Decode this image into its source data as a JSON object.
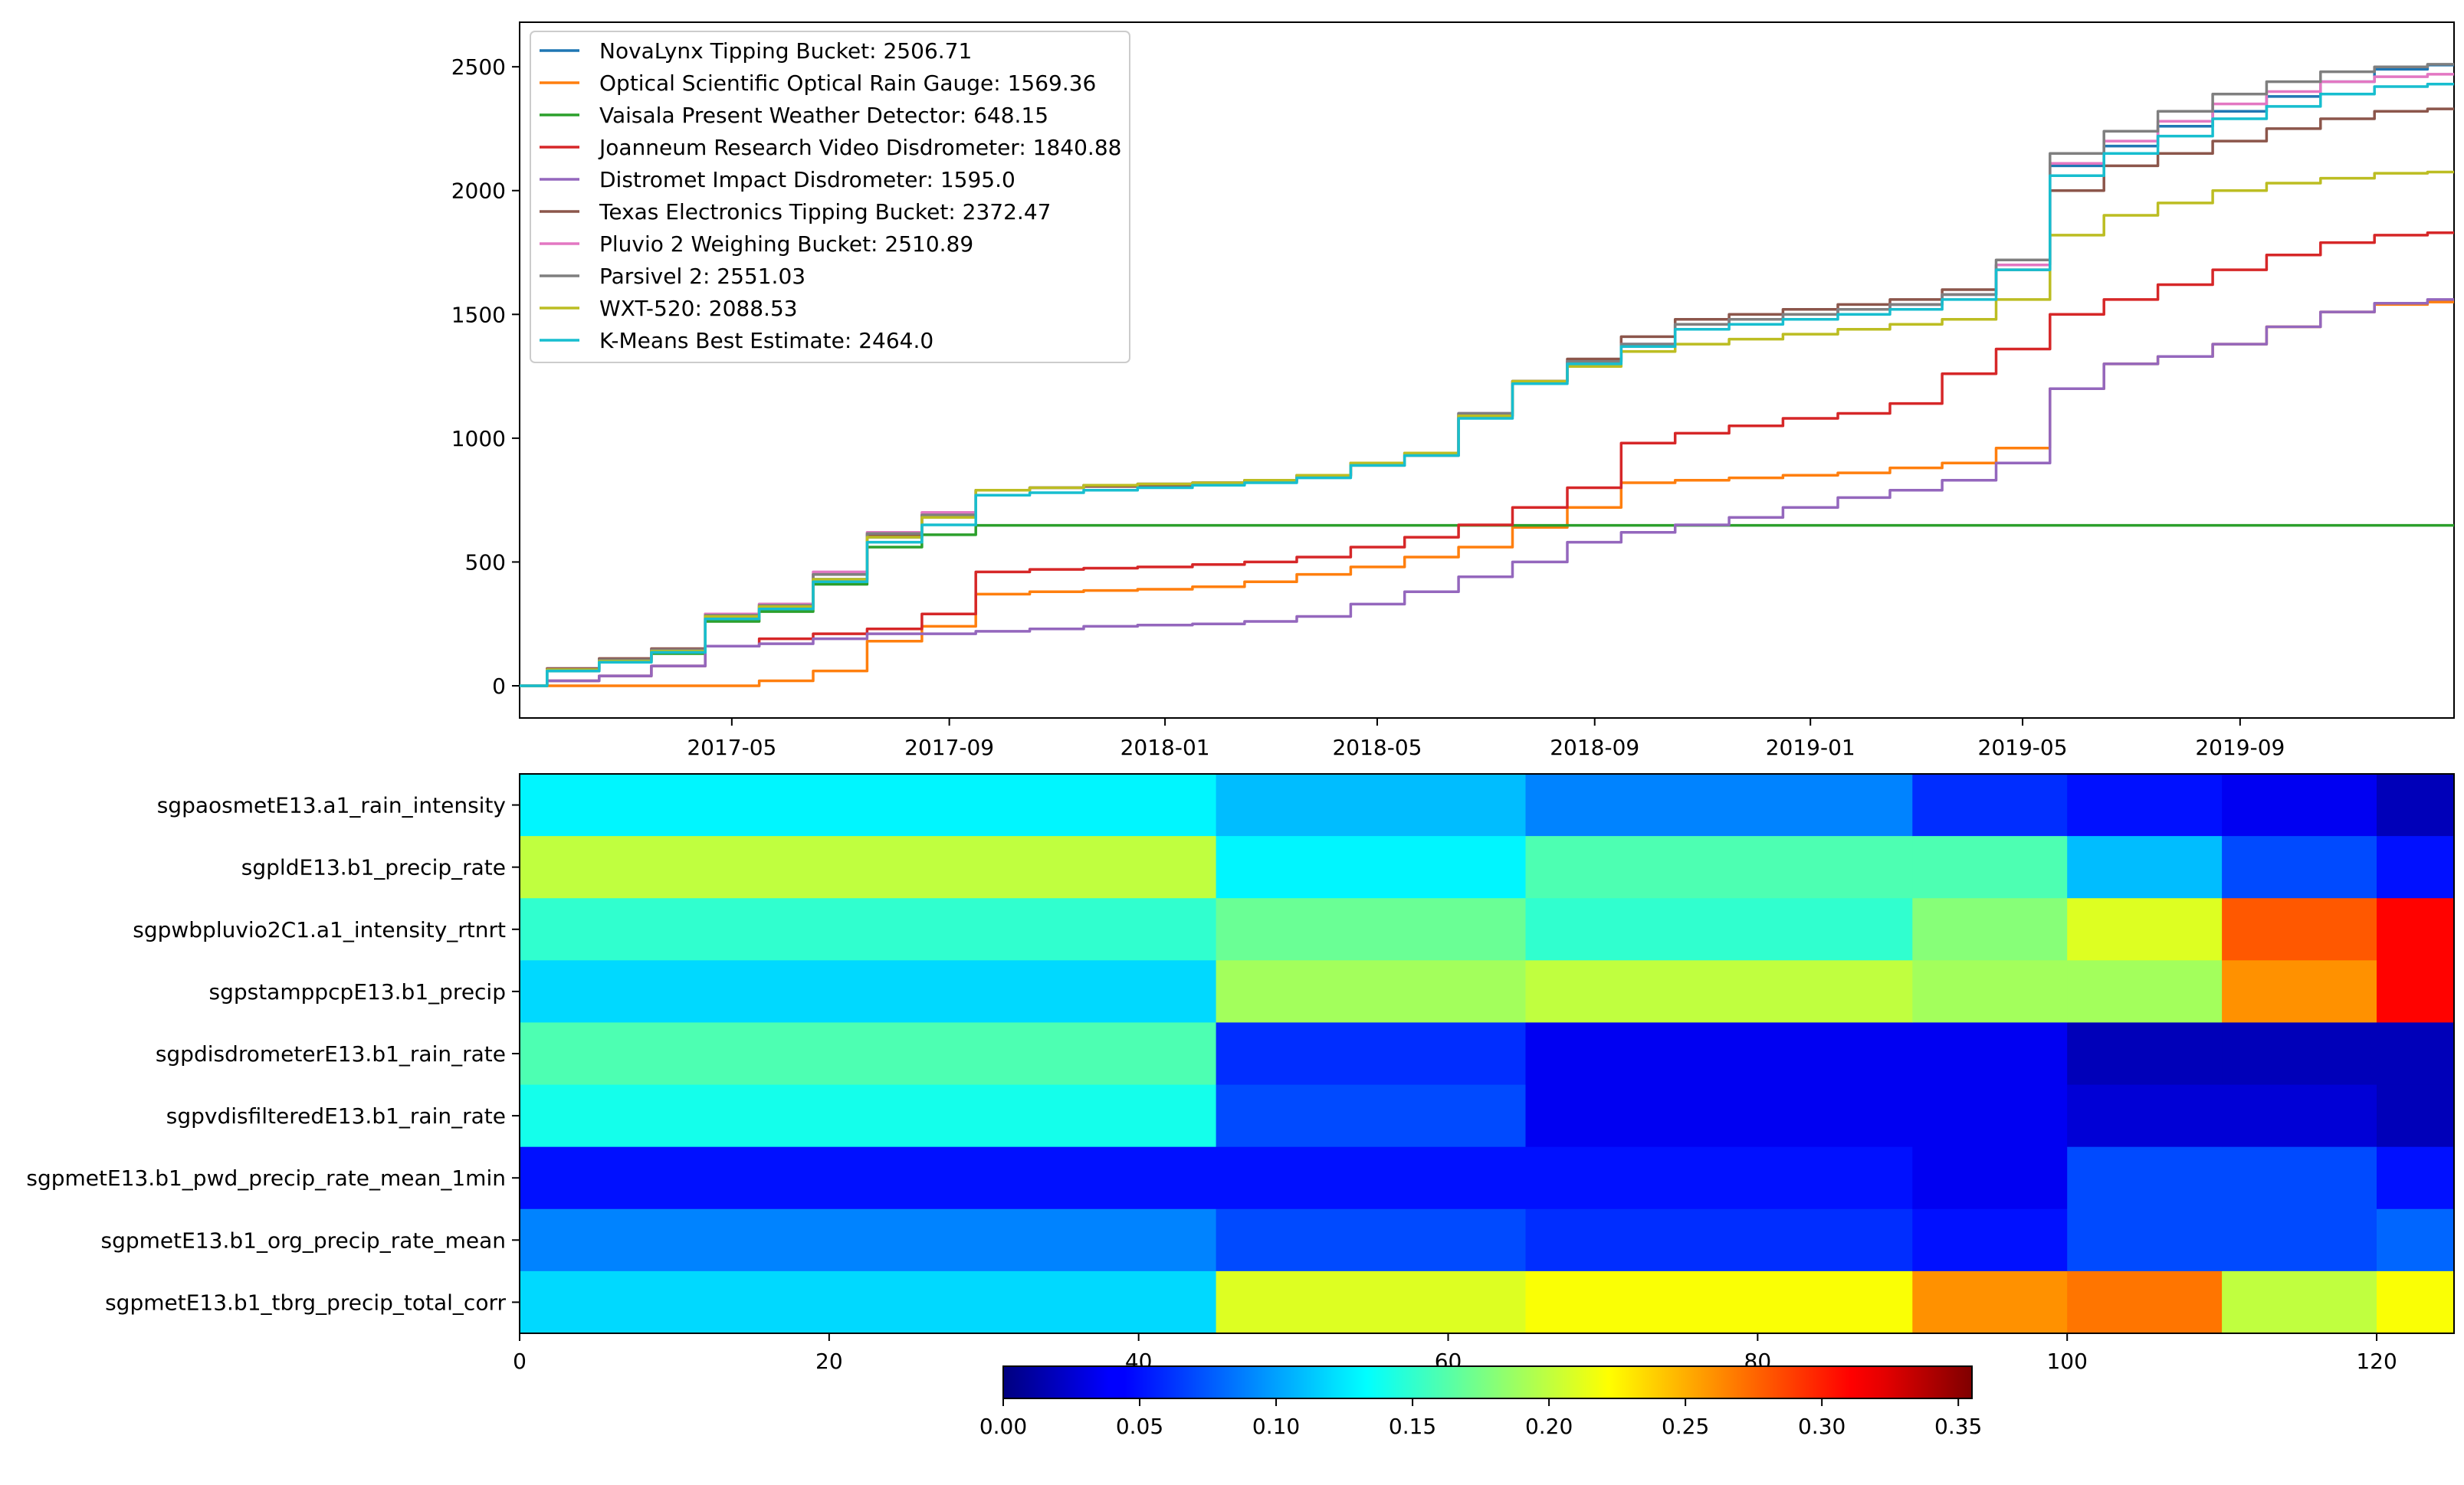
{
  "chart_data": [
    {
      "type": "line",
      "title": "",
      "xlabel": "",
      "ylabel": "",
      "x_ticks": [
        "2017-05",
        "2017-09",
        "2018-01",
        "2018-05",
        "2018-09",
        "2019-01",
        "2019-05",
        "2019-09"
      ],
      "y_ticks": [
        "0",
        "500",
        "1000",
        "1500",
        "2000",
        "2500"
      ],
      "ylim": [
        -130,
        2680
      ],
      "xlim": [
        "2017-01-01",
        "2019-12-31"
      ],
      "legend_position": "upper left",
      "x": [
        "2017-01-01",
        "2017-02-01",
        "2017-03-01",
        "2017-04-01",
        "2017-05-01",
        "2017-06-01",
        "2017-07-01",
        "2017-08-01",
        "2017-09-01",
        "2017-10-01",
        "2017-11-01",
        "2017-12-01",
        "2018-01-01",
        "2018-02-01",
        "2018-03-01",
        "2018-04-01",
        "2018-05-01",
        "2018-06-01",
        "2018-07-01",
        "2018-08-01",
        "2018-09-01",
        "2018-10-01",
        "2018-11-01",
        "2018-12-01",
        "2019-01-01",
        "2019-02-01",
        "2019-03-01",
        "2019-04-01",
        "2019-05-01",
        "2019-06-01",
        "2019-07-01",
        "2019-08-01",
        "2019-09-01",
        "2019-10-01",
        "2019-11-01",
        "2019-12-01",
        "2019-12-31"
      ],
      "series": [
        {
          "name": "NovaLynx Tipping Bucket: 2506.71",
          "color": "#1f77b4",
          "values": [
            0,
            60,
            100,
            140,
            280,
            320,
            430,
            600,
            680,
            790,
            800,
            810,
            815,
            820,
            830,
            850,
            900,
            940,
            1100,
            1230,
            1310,
            1380,
            1460,
            1480,
            1500,
            1520,
            1540,
            1580,
            1700,
            2100,
            2180,
            2260,
            2320,
            2380,
            2440,
            2490,
            2507
          ]
        },
        {
          "name": "Optical Scientific Optical Rain Gauge: 1569.36",
          "color": "#ff7f0e",
          "values": [
            0,
            0,
            0,
            0,
            0,
            20,
            60,
            180,
            240,
            370,
            380,
            385,
            390,
            400,
            420,
            450,
            480,
            520,
            560,
            640,
            720,
            820,
            830,
            840,
            850,
            860,
            880,
            900,
            960,
            1200,
            1300,
            1330,
            1380,
            1450,
            1510,
            1540,
            1550
          ]
        },
        {
          "name": "Vaisala Present Weather Detector: 648.15",
          "color": "#2ca02c",
          "values": [
            0,
            60,
            95,
            130,
            260,
            300,
            410,
            560,
            610,
            648,
            648,
            648,
            648,
            648,
            648,
            648,
            648,
            648,
            648,
            648,
            648,
            648,
            648,
            648,
            648,
            648,
            648,
            648,
            648,
            648,
            648,
            648,
            648,
            648,
            648,
            648,
            648
          ]
        },
        {
          "name": "Joanneum Research Video Disdrometer: 1840.88",
          "color": "#d62728",
          "values": [
            0,
            20,
            40,
            80,
            160,
            190,
            210,
            230,
            290,
            460,
            470,
            475,
            480,
            490,
            500,
            520,
            560,
            600,
            650,
            720,
            800,
            980,
            1020,
            1050,
            1080,
            1100,
            1140,
            1260,
            1360,
            1500,
            1560,
            1620,
            1680,
            1740,
            1790,
            1820,
            1830
          ]
        },
        {
          "name": "Distromet Impact Disdrometer: 1595.0",
          "color": "#9467bd",
          "values": [
            0,
            20,
            40,
            80,
            160,
            170,
            190,
            210,
            210,
            220,
            230,
            240,
            245,
            250,
            260,
            280,
            330,
            380,
            440,
            500,
            580,
            620,
            650,
            680,
            720,
            760,
            790,
            830,
            900,
            1200,
            1300,
            1330,
            1380,
            1450,
            1510,
            1545,
            1560
          ]
        },
        {
          "name": "Texas Electronics Tipping Bucket: 2372.47",
          "color": "#8c564b",
          "values": [
            0,
            70,
            110,
            150,
            290,
            330,
            450,
            610,
            690,
            790,
            800,
            805,
            810,
            815,
            825,
            845,
            890,
            930,
            1090,
            1230,
            1320,
            1410,
            1480,
            1500,
            1520,
            1540,
            1560,
            1600,
            1680,
            2000,
            2100,
            2150,
            2200,
            2250,
            2290,
            2320,
            2330
          ]
        },
        {
          "name": "Pluvio 2 Weighing Bucket: 2510.89",
          "color": "#e377c2",
          "values": [
            0,
            65,
            100,
            145,
            290,
            330,
            460,
            620,
            700,
            790,
            800,
            810,
            815,
            820,
            830,
            850,
            900,
            940,
            1100,
            1230,
            1310,
            1380,
            1460,
            1480,
            1500,
            1520,
            1540,
            1580,
            1700,
            2110,
            2200,
            2280,
            2350,
            2400,
            2440,
            2460,
            2470
          ]
        },
        {
          "name": "Parsivel 2: 2551.03",
          "color": "#7f7f7f",
          "values": [
            0,
            65,
            105,
            145,
            285,
            325,
            450,
            615,
            690,
            790,
            800,
            810,
            815,
            820,
            830,
            850,
            900,
            940,
            1100,
            1230,
            1310,
            1380,
            1460,
            1480,
            1500,
            1520,
            1540,
            1580,
            1720,
            2150,
            2240,
            2320,
            2390,
            2440,
            2480,
            2500,
            2510
          ]
        },
        {
          "name": "WXT-520: 2088.53",
          "color": "#bcbd22",
          "values": [
            0,
            65,
            100,
            140,
            280,
            320,
            430,
            600,
            680,
            790,
            800,
            810,
            815,
            820,
            830,
            850,
            900,
            940,
            1090,
            1230,
            1290,
            1350,
            1380,
            1400,
            1420,
            1440,
            1460,
            1480,
            1560,
            1820,
            1900,
            1950,
            2000,
            2030,
            2050,
            2070,
            2075
          ]
        },
        {
          "name": "K-Means Best Estimate: 2464.0",
          "color": "#17becf",
          "values": [
            0,
            60,
            95,
            135,
            270,
            310,
            420,
            580,
            650,
            770,
            780,
            790,
            800,
            810,
            820,
            840,
            890,
            930,
            1080,
            1220,
            1300,
            1370,
            1440,
            1460,
            1480,
            1500,
            1520,
            1560,
            1680,
            2060,
            2150,
            2220,
            2290,
            2340,
            2390,
            2420,
            2430
          ]
        }
      ]
    },
    {
      "type": "heatmap",
      "title": "",
      "xlabel": "",
      "ylabel": "",
      "colormap": "jet",
      "x_ticks": [
        "0",
        "20",
        "40",
        "60",
        "80",
        "100",
        "120"
      ],
      "xlim": [
        0,
        125
      ],
      "rows": [
        "sgpaosmetE13.a1_rain_intensity",
        "sgpldE13.b1_precip_rate",
        "sgpwbpluvio2C1.a1_intensity_rtnrt",
        "sgpstamppcpE13.b1_precip",
        "sgpdisdrometerE13.b1_rain_rate",
        "sgpvdisfilteredE13.b1_rain_rate",
        "sgpmetE13.b1_pwd_precip_rate_mean_1min",
        "sgpmetE13.b1_org_precip_rate_mean",
        "sgpmetE13.b1_tbrg_precip_total_corr"
      ],
      "colorbar": {
        "min": 0.0,
        "max": 0.355,
        "ticks": [
          "0.00",
          "0.05",
          "0.10",
          "0.15",
          "0.20",
          "0.25",
          "0.30",
          "0.35"
        ]
      },
      "column_groups": [
        {
          "start": 0,
          "end": 45,
          "values": [
            0.13,
            0.2,
            0.15,
            0.12,
            0.16,
            0.14,
            0.05,
            0.09,
            0.12
          ]
        },
        {
          "start": 45,
          "end": 65,
          "values": [
            0.11,
            0.13,
            0.17,
            0.19,
            0.06,
            0.07,
            0.05,
            0.07,
            0.21
          ]
        },
        {
          "start": 65,
          "end": 90,
          "values": [
            0.09,
            0.16,
            0.15,
            0.2,
            0.04,
            0.04,
            0.05,
            0.06,
            0.22
          ]
        },
        {
          "start": 90,
          "end": 100,
          "values": [
            0.06,
            0.16,
            0.18,
            0.19,
            0.04,
            0.04,
            0.04,
            0.05,
            0.26
          ]
        },
        {
          "start": 100,
          "end": 110,
          "values": [
            0.05,
            0.11,
            0.21,
            0.19,
            0.02,
            0.03,
            0.07,
            0.07,
            0.27
          ]
        },
        {
          "start": 110,
          "end": 120,
          "values": [
            0.04,
            0.07,
            0.28,
            0.26,
            0.02,
            0.03,
            0.07,
            0.07,
            0.2
          ]
        },
        {
          "start": 120,
          "end": 125,
          "values": [
            0.02,
            0.05,
            0.31,
            0.31,
            0.02,
            0.02,
            0.05,
            0.08,
            0.22
          ]
        }
      ]
    }
  ]
}
